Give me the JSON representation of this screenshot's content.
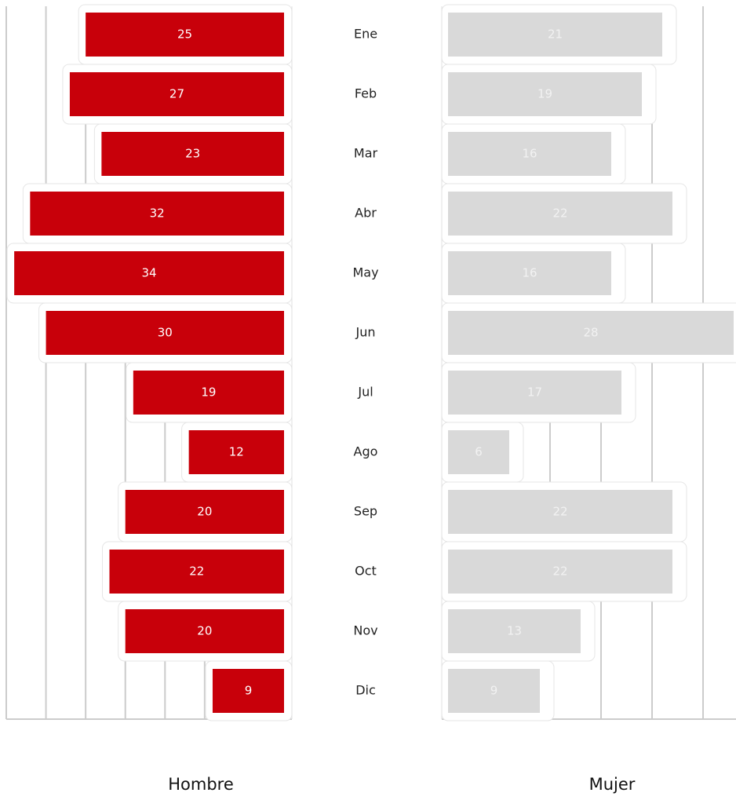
{
  "chart_data": {
    "type": "butterfly-bar",
    "categories": [
      "Ene",
      "Feb",
      "Mar",
      "Abr",
      "May",
      "Jun",
      "Jul",
      "Ago",
      "Sep",
      "Oct",
      "Nov",
      "Dic"
    ],
    "series": [
      {
        "name": "Hombre",
        "color": "#c8000a",
        "label_color": "#ffffff",
        "values": [
          25,
          27,
          23,
          32,
          34,
          30,
          19,
          12,
          20,
          22,
          20,
          9
        ],
        "xlim": [
          0,
          35
        ],
        "xticks": [
          0,
          5,
          10,
          15,
          20,
          25,
          30,
          35
        ]
      },
      {
        "name": "Mujer",
        "color": "#d9d9d9",
        "label_color": "#f2f2f2",
        "values": [
          21,
          19,
          16,
          22,
          16,
          28,
          17,
          6,
          22,
          22,
          13,
          9
        ],
        "xlim": [
          0,
          28
        ],
        "xticks": [
          0,
          5,
          10,
          15,
          20,
          25
        ]
      }
    ],
    "grid": true
  }
}
